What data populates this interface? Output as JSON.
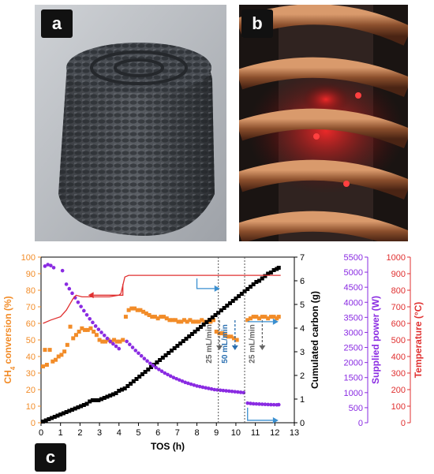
{
  "panels": {
    "a": "a",
    "b": "b",
    "c": "c"
  },
  "colors": {
    "ch4": "#F28C28",
    "carbon": "#000000",
    "power": "#8A2BE2",
    "temperature": "#E03030",
    "arrow": "#3A8FD0"
  },
  "chart_data": {
    "type": "scatter",
    "xlabel": "TOS (h)",
    "xlim": [
      0,
      13
    ],
    "xticks": [
      "0",
      "1",
      "2",
      "3",
      "4",
      "5",
      "6",
      "7",
      "8",
      "9",
      "10",
      "11",
      "12",
      "13"
    ],
    "axes": {
      "ch4": {
        "label": "CH4 conversion (%)",
        "label_main": "CH",
        "label_sub": "4",
        "label_rest": " conversion (%)",
        "ylim": [
          0,
          100
        ],
        "ticks": [
          "0",
          "10",
          "20",
          "30",
          "40",
          "50",
          "60",
          "70",
          "80",
          "90",
          "100"
        ]
      },
      "carbon": {
        "label": "Cumulated carbon (g)",
        "ylim": [
          0,
          7
        ],
        "ticks": [
          "0",
          "1",
          "2",
          "3",
          "4",
          "5",
          "6",
          "7"
        ]
      },
      "power": {
        "label": "Supplied power (W)",
        "ylim": [
          0,
          5500
        ],
        "ticks": [
          "0",
          "500",
          "1000",
          "1500",
          "2000",
          "2500",
          "3000",
          "3500",
          "4000",
          "4500",
          "5000",
          "5500"
        ]
      },
      "temperature": {
        "label": "Temperature (°C)",
        "ylim": [
          0,
          1000
        ],
        "ticks": [
          "0",
          "100",
          "200",
          "300",
          "400",
          "500",
          "600",
          "700",
          "800",
          "900",
          "1000"
        ]
      }
    },
    "series": [
      {
        "name": "CH4 conversion",
        "axis": "ch4",
        "marker": "square",
        "x": [
          0.1,
          0.2,
          0.3,
          0.45,
          0.6,
          0.75,
          0.9,
          1.05,
          1.2,
          1.35,
          1.5,
          1.65,
          1.8,
          1.95,
          2.1,
          2.25,
          2.4,
          2.55,
          2.7,
          2.85,
          3.0,
          3.15,
          3.3,
          3.45,
          3.6,
          3.75,
          3.9,
          4.05,
          4.2,
          4.35,
          4.5,
          4.65,
          4.8,
          4.95,
          5.1,
          5.25,
          5.4,
          5.55,
          5.7,
          5.85,
          6.0,
          6.15,
          6.3,
          6.45,
          6.6,
          6.75,
          6.9,
          7.05,
          7.2,
          7.35,
          7.5,
          7.65,
          7.8,
          7.95,
          8.1,
          8.25,
          8.4,
          8.55,
          8.7,
          8.85,
          9.0,
          9.15,
          9.3,
          9.45,
          9.6,
          9.75,
          9.9,
          10.05,
          10.6,
          10.75,
          10.9,
          11.05,
          11.2,
          11.35,
          11.5,
          11.65,
          11.8,
          11.95,
          12.1,
          12.2
        ],
        "y": [
          34,
          44,
          35,
          44,
          37,
          38,
          40,
          41,
          43,
          47,
          58,
          51,
          53,
          55,
          57,
          56,
          56,
          57,
          55,
          53,
          50,
          49,
          49,
          50,
          49,
          50,
          49,
          49,
          50,
          64,
          68,
          69,
          69,
          68,
          68,
          67,
          66,
          65,
          64,
          64,
          63,
          64,
          64,
          63,
          62,
          62,
          62,
          61,
          61,
          62,
          61,
          62,
          61,
          61,
          61,
          62,
          61,
          61,
          61,
          62,
          55,
          54,
          54,
          53,
          52,
          52,
          51,
          50,
          62,
          63,
          64,
          64,
          63,
          64,
          64,
          63,
          64,
          64,
          63,
          64
        ]
      },
      {
        "name": "Cumulated carbon",
        "axis": "carbon",
        "marker": "square",
        "x": [
          0.1,
          0.25,
          0.4,
          0.55,
          0.7,
          0.85,
          1.0,
          1.15,
          1.3,
          1.45,
          1.6,
          1.75,
          1.9,
          2.05,
          2.2,
          2.35,
          2.5,
          2.65,
          2.8,
          2.95,
          3.1,
          3.25,
          3.4,
          3.55,
          3.7,
          3.85,
          4.0,
          4.15,
          4.3,
          4.45,
          4.6,
          4.75,
          4.9,
          5.05,
          5.2,
          5.35,
          5.5,
          5.65,
          5.8,
          5.95,
          6.1,
          6.25,
          6.4,
          6.55,
          6.7,
          6.85,
          7.0,
          7.15,
          7.3,
          7.45,
          7.6,
          7.75,
          7.9,
          8.05,
          8.2,
          8.35,
          8.5,
          8.65,
          8.8,
          8.95,
          9.1,
          9.25,
          9.4,
          9.55,
          9.7,
          9.85,
          10.0,
          10.15,
          10.3,
          10.45,
          10.6,
          10.75,
          10.9,
          11.05,
          11.2,
          11.35,
          11.5,
          11.65,
          11.8,
          11.95,
          12.1,
          12.2
        ],
        "y": [
          0.05,
          0.1,
          0.15,
          0.2,
          0.25,
          0.3,
          0.35,
          0.4,
          0.45,
          0.5,
          0.55,
          0.6,
          0.65,
          0.7,
          0.75,
          0.8,
          0.9,
          0.95,
          0.95,
          0.95,
          1.0,
          1.05,
          1.1,
          1.15,
          1.2,
          1.25,
          1.35,
          1.4,
          1.45,
          1.55,
          1.65,
          1.75,
          1.85,
          1.95,
          2.05,
          2.15,
          2.25,
          2.35,
          2.45,
          2.55,
          2.65,
          2.75,
          2.85,
          2.95,
          3.05,
          3.15,
          3.25,
          3.35,
          3.45,
          3.55,
          3.65,
          3.75,
          3.85,
          3.95,
          4.05,
          4.15,
          4.25,
          4.35,
          4.45,
          4.55,
          4.65,
          4.75,
          4.85,
          4.95,
          5.05,
          5.15,
          5.25,
          5.35,
          5.45,
          5.55,
          5.65,
          5.75,
          5.85,
          5.95,
          6.0,
          6.1,
          6.2,
          6.3,
          6.35,
          6.45,
          6.5,
          6.55
        ]
      },
      {
        "name": "Supplied power",
        "axis": "power",
        "marker": "circle",
        "x": [
          0.2,
          0.35,
          0.5,
          0.65,
          1.1,
          1.3,
          1.45,
          1.6,
          1.75,
          1.9,
          2.05,
          2.2,
          2.35,
          2.5,
          2.65,
          2.8,
          2.95,
          3.1,
          3.25,
          3.4,
          3.55,
          3.7,
          3.85,
          4.0,
          4.4,
          4.55,
          4.7,
          4.85,
          5.0,
          5.15,
          5.3,
          5.45,
          5.6,
          5.75,
          5.9,
          6.05,
          6.2,
          6.35,
          6.5,
          6.65,
          6.8,
          6.95,
          7.1,
          7.25,
          7.4,
          7.55,
          7.7,
          7.85,
          8.0,
          8.15,
          8.3,
          8.45,
          8.6,
          8.75,
          8.9,
          9.05,
          9.2,
          9.35,
          9.5,
          9.65,
          9.8,
          9.95,
          10.1,
          10.25,
          10.4,
          10.6,
          10.75,
          10.9,
          11.05,
          11.2,
          11.35,
          11.5,
          11.65,
          11.8,
          11.95,
          12.1,
          12.2
        ],
        "y": [
          5200,
          5250,
          5220,
          5150,
          5050,
          4600,
          4450,
          4300,
          4150,
          4000,
          3860,
          3720,
          3580,
          3450,
          3330,
          3210,
          3100,
          3000,
          2900,
          2800,
          2700,
          2620,
          2540,
          2460,
          2700,
          2600,
          2500,
          2400,
          2310,
          2220,
          2130,
          2050,
          1970,
          1900,
          1830,
          1770,
          1710,
          1650,
          1600,
          1550,
          1500,
          1460,
          1420,
          1380,
          1340,
          1310,
          1280,
          1250,
          1220,
          1200,
          1180,
          1160,
          1140,
          1120,
          1100,
          1090,
          1080,
          1070,
          1060,
          1050,
          1040,
          1030,
          1020,
          1010,
          1000,
          650,
          640,
          630,
          625,
          620,
          615,
          610,
          605,
          600,
          598,
          595,
          600
        ]
      },
      {
        "name": "Temperature",
        "axis": "temperature",
        "marker": "line",
        "x": [
          0.1,
          0.5,
          1.0,
          1.3,
          1.5,
          1.65,
          1.8,
          2.1,
          2.5,
          3.0,
          3.5,
          4.0,
          4.1,
          4.3,
          4.5,
          5.0,
          6.0,
          7.0,
          8.0,
          9.0,
          10.0,
          11.0,
          12.3
        ],
        "y": [
          600,
          620,
          640,
          680,
          720,
          750,
          770,
          760,
          760,
          760,
          760,
          770,
          780,
          880,
          890,
          890,
          890,
          890,
          890,
          890,
          890,
          890,
          890
        ]
      }
    ],
    "annotations": [
      {
        "text": "25 mL/min",
        "x": 8.75,
        "color": "#666666"
      },
      {
        "text": "50 mL/min",
        "x": 9.55,
        "color": "#2A6FB0"
      },
      {
        "text": "25 mL/min",
        "x": 10.95,
        "color": "#666666"
      }
    ],
    "vlines": [
      9.1,
      10.45
    ]
  }
}
